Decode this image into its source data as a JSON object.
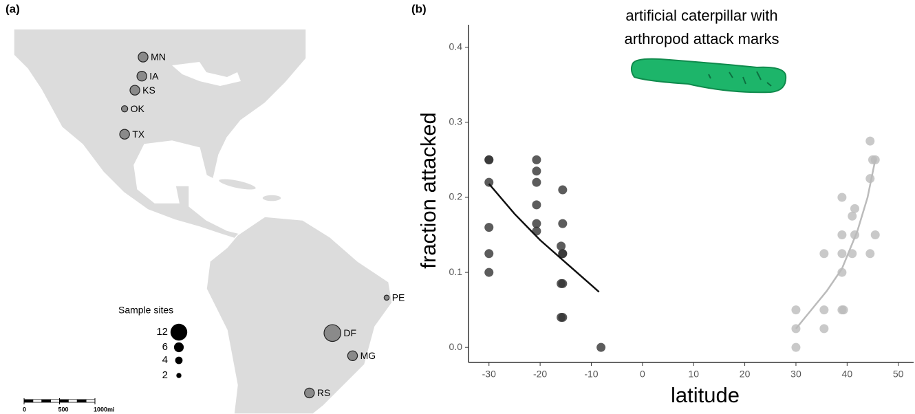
{
  "chart_data": [
    {
      "type": "map",
      "panel": "(a)",
      "sites": [
        {
          "name": "MN",
          "lon": -94,
          "lat": 45,
          "n": 6
        },
        {
          "name": "IA",
          "lon": -94.3,
          "lat": 40.8,
          "n": 6
        },
        {
          "name": "KS",
          "lon": -96,
          "lat": 37.7,
          "n": 6
        },
        {
          "name": "OK",
          "lon": -98.5,
          "lat": 33.6,
          "n": 3
        },
        {
          "name": "TX",
          "lon": -98.5,
          "lat": 28,
          "n": 6
        },
        {
          "name": "PE",
          "lon": -34.7,
          "lat": -8,
          "n": 2
        },
        {
          "name": "DF",
          "lon": -47.9,
          "lat": -15.8,
          "n": 12
        },
        {
          "name": "MG",
          "lon": -43,
          "lat": -20.8,
          "n": 6
        },
        {
          "name": "RS",
          "lon": -53.5,
          "lat": -29,
          "n": 6
        }
      ],
      "size_legend": {
        "title": "Sample sites",
        "sizes": [
          12,
          6,
          4,
          2
        ]
      },
      "scale_bar": {
        "ticks": [
          0,
          500,
          {
            "value": 1000,
            "label": "1000mi"
          }
        ]
      }
    },
    {
      "type": "scatter",
      "panel": "(b)",
      "annotation": [
        "artificial caterpillar with",
        "arthropod attack marks"
      ],
      "x_label": "latitude",
      "y_label": "fraction attacked",
      "xlim": [
        -34,
        53
      ],
      "ylim": [
        -0.02,
        0.43
      ],
      "xticks": [
        -30,
        -20,
        -10,
        0,
        10,
        20,
        30,
        40,
        50
      ],
      "yticks": [
        {
          "value": 0,
          "label": "0.0"
        },
        0.1,
        0.2,
        0.3,
        0.4
      ],
      "series": [
        {
          "color": "#333333",
          "x": [
            -30,
            -30,
            -30,
            -30,
            -30,
            -30,
            -20.7,
            -20.7,
            -20.7,
            -20.7,
            -20.7,
            -20.7,
            -15.6,
            -15.6,
            -15.9,
            -15.6,
            -15.6,
            -15.9,
            -15.6,
            -15.9,
            -15.6,
            -8.1
          ],
          "values": [
            0.25,
            0.25,
            0.22,
            0.16,
            0.125,
            0.1,
            0.25,
            0.235,
            0.22,
            0.19,
            0.165,
            0.155,
            0.21,
            0.165,
            0.135,
            0.125,
            0.125,
            0.085,
            0.085,
            0.04,
            0.04,
            0
          ],
          "fit": {
            "x": [
              -30,
              -25,
              -20,
              -15,
              -10,
              -8.5
            ],
            "values": [
              0.218,
              0.178,
              0.143,
              0.113,
              0.083,
              0.074
            ]
          }
        },
        {
          "color": "#bbbbbb",
          "x": [
            30,
            30,
            30,
            35.5,
            35.5,
            35.5,
            39,
            39,
            39,
            39,
            39.3,
            39,
            41,
            41,
            41.5,
            41.5,
            44.5,
            44.5,
            44.5,
            45,
            45.5,
            45.5
          ],
          "values": [
            0.05,
            0.025,
            0,
            0.125,
            0.05,
            0.025,
            0.2,
            0.15,
            0.125,
            0.1,
            0.05,
            0.05,
            0.175,
            0.125,
            0.185,
            0.15,
            0.275,
            0.225,
            0.125,
            0.25,
            0.25,
            0.15
          ],
          "fit": {
            "x": [
              30,
              33,
              36,
              39,
              42,
              44,
              45.5
            ],
            "values": [
              0.025,
              0.05,
              0.075,
              0.105,
              0.155,
              0.2,
              0.25
            ]
          }
        }
      ]
    }
  ]
}
